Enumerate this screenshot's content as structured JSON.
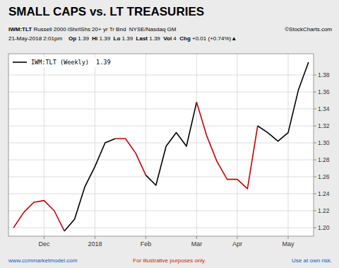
{
  "chart_data": {
    "type": "line",
    "title": "SMALL CAPS vs. LT TREASURIES",
    "subtitle": [
      [
        {
          "text": "IWM:TLT",
          "bold": true
        },
        {
          "text": " Russell 2000 iShr/iShs 20+ yr Tr Bnd  NYSE/Nasdaq GM",
          "bold": false
        }
      ],
      [
        {
          "text": "21-May-2018 2:01pm    ",
          "bold": false
        },
        {
          "text": "Op ",
          "bold": true
        },
        {
          "text": "1.39  ",
          "bold": false
        },
        {
          "text": "Hi ",
          "bold": true
        },
        {
          "text": "1.39  ",
          "bold": false
        },
        {
          "text": "Lo ",
          "bold": true
        },
        {
          "text": "1.39  ",
          "bold": false
        },
        {
          "text": "Last ",
          "bold": true
        },
        {
          "text": "1.39  ",
          "bold": false
        },
        {
          "text": "Vol ",
          "bold": true
        },
        {
          "text": "4  ",
          "bold": false
        },
        {
          "text": "Chg ",
          "bold": true
        },
        {
          "text": "+0.01 (+0.74%)▲",
          "bold": false
        }
      ]
    ],
    "annotations": [
      {
        "text": "©StockCharts.com",
        "color": "#000000"
      },
      {
        "text": "www.ccmmarketmodel.com",
        "color": "#1155cc"
      },
      {
        "text": "For illustrative purposes only.",
        "color": "#cc2200"
      },
      {
        "text": "Use at own risk.",
        "color": "#1155cc"
      }
    ],
    "categories": [
      null,
      null,
      null,
      "Dec",
      null,
      null,
      null,
      null,
      "2018",
      null,
      null,
      null,
      null,
      "Feb",
      null,
      null,
      null,
      null,
      "Mar",
      null,
      null,
      null,
      "Apr",
      null,
      null,
      null,
      null,
      "May",
      null,
      null
    ],
    "series": [
      {
        "name": "IWM:TLT (Weekly)  1.39",
        "color": "#000000",
        "values": [
          1.2,
          1.218,
          1.23,
          1.232,
          1.22,
          1.196,
          1.21,
          1.248,
          1.272,
          1.3,
          1.305,
          1.305,
          1.288,
          1.262,
          1.25,
          1.296,
          1.312,
          1.296,
          1.348,
          1.308,
          1.278,
          1.257,
          1.257,
          1.246,
          1.32,
          1.312,
          1.302,
          1.312,
          1.362,
          1.395
        ],
        "colors": [
          "#cc0000",
          "#cc0000",
          "#cc0000",
          "#cc0000",
          "#cc0000",
          "#cc0000",
          "#000000",
          "#000000",
          "#000000",
          "#000000",
          "#cc0000",
          "#cc0000",
          "#cc0000",
          "#cc0000",
          "#000000",
          "#000000",
          "#000000",
          "#000000",
          "#cc0000",
          "#cc0000",
          "#cc0000",
          "#cc0000",
          "#cc0000",
          "#cc0000",
          "#cc0000",
          "#000000",
          "#000000",
          "#000000",
          "#000000",
          "#000000"
        ]
      }
    ],
    "ylim": [
      1.19,
      1.405
    ],
    "yticks": [
      {
        "value": 1.2,
        "label": "1.20"
      },
      1.22,
      1.24,
      1.26,
      1.28,
      {
        "value": 1.3,
        "label": "1.30"
      },
      1.32,
      1.34,
      1.36,
      1.38
    ],
    "grid": true,
    "legend": "upper left"
  }
}
